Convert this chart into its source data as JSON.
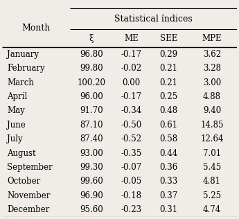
{
  "title": "Statistical índices",
  "col_header": [
    "ξ",
    "ME",
    "SEE",
    "MPE"
  ],
  "months": [
    "January",
    "February",
    "March",
    "April",
    "May",
    "June",
    "July",
    "August",
    "September",
    "October",
    "November",
    "December"
  ],
  "table_data": [
    [
      "96.80",
      "-0.17",
      "0.29",
      "3.62"
    ],
    [
      "99.80",
      "-0.02",
      "0.21",
      "3.28"
    ],
    [
      "100.20",
      "0.00",
      "0.21",
      "3.00"
    ],
    [
      "96.00",
      "-0.17",
      "0.25",
      "4.88"
    ],
    [
      "91.70",
      "-0.34",
      "0.48",
      "9.40"
    ],
    [
      "87.10",
      "-0.50",
      "0.61",
      "14.85"
    ],
    [
      "87.40",
      "-0.52",
      "0.58",
      "12.64"
    ],
    [
      "93.00",
      "-0.35",
      "0.44",
      "7.01"
    ],
    [
      "99.30",
      "-0.07",
      "0.36",
      "5.45"
    ],
    [
      "99.60",
      "-0.05",
      "0.33",
      "4.81"
    ],
    [
      "96.90",
      "-0.18",
      "0.37",
      "5.25"
    ],
    [
      "95.60",
      "-0.23",
      "0.31",
      "4.74"
    ]
  ],
  "bg_color": "#f0ede8",
  "font_size": 8.5,
  "header_font_size": 9.0
}
